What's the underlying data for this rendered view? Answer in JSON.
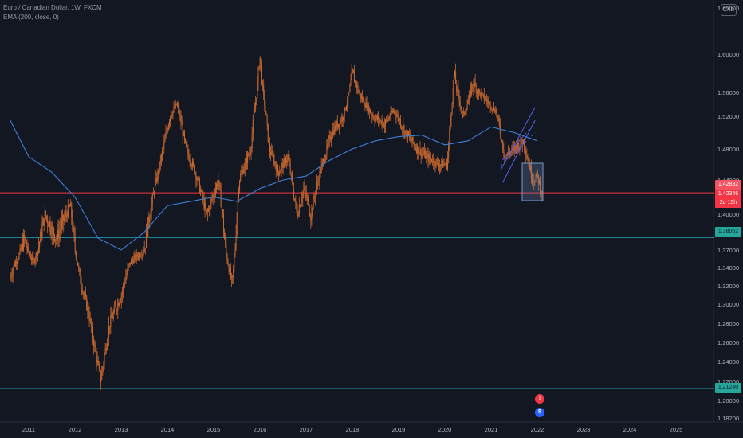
{
  "header": {
    "symbol_title": "Euro / Canadian Dollar, 1W, FXCM",
    "indicator": "EMA (200, close, 0)",
    "currency_button": "CAD"
  },
  "price_tags": {
    "upper": "1.42832",
    "current": "1.42346",
    "countdown": "2d 15h",
    "support_mid": "1.38062",
    "support_low": "1.21240"
  },
  "colors": {
    "background": "#131722",
    "candles": "#c8682f",
    "ema": "#3d7fd6",
    "resistance_line": "#f23645",
    "support_line": "#26c6da",
    "channel": "#5a5ee8"
  },
  "chart_data": {
    "type": "candlestick",
    "title": "Euro / Canadian Dollar, 1W, FXCM",
    "y_ticks": [
      "1.65000",
      "1.60000",
      "1.56000",
      "1.52000",
      "1.48000",
      "1.44000",
      "1.40000",
      "1.37000",
      "1.34000",
      "1.32000",
      "1.30000",
      "1.28000",
      "1.26000",
      "1.24000",
      "1.22000",
      "1.20000",
      "1.18200"
    ],
    "x_ticks": [
      "2011",
      "2012",
      "2013",
      "2014",
      "2015",
      "2016",
      "2017",
      "2018",
      "2019",
      "2020",
      "2021",
      "2022",
      "2023",
      "2024",
      "2025"
    ],
    "price_path": [
      [
        2010.6,
        1.33
      ],
      [
        2010.9,
        1.38
      ],
      [
        2011.1,
        1.35
      ],
      [
        2011.35,
        1.4
      ],
      [
        2011.6,
        1.38
      ],
      [
        2011.9,
        1.41
      ],
      [
        2012.1,
        1.33
      ],
      [
        2012.3,
        1.29
      ],
      [
        2012.55,
        1.22
      ],
      [
        2012.75,
        1.28
      ],
      [
        2013.0,
        1.31
      ],
      [
        2013.2,
        1.35
      ],
      [
        2013.5,
        1.37
      ],
      [
        2013.8,
        1.45
      ],
      [
        2014.05,
        1.52
      ],
      [
        2014.2,
        1.54
      ],
      [
        2014.4,
        1.48
      ],
      [
        2014.6,
        1.45
      ],
      [
        2014.85,
        1.4
      ],
      [
        2015.1,
        1.44
      ],
      [
        2015.3,
        1.35
      ],
      [
        2015.4,
        1.32
      ],
      [
        2015.55,
        1.44
      ],
      [
        2015.8,
        1.48
      ],
      [
        2016.0,
        1.6
      ],
      [
        2016.2,
        1.48
      ],
      [
        2016.4,
        1.45
      ],
      [
        2016.6,
        1.47
      ],
      [
        2016.8,
        1.4
      ],
      [
        2016.95,
        1.43
      ],
      [
        2017.1,
        1.4
      ],
      [
        2017.3,
        1.45
      ],
      [
        2017.55,
        1.5
      ],
      [
        2017.8,
        1.52
      ],
      [
        2018.0,
        1.58
      ],
      [
        2018.2,
        1.55
      ],
      [
        2018.45,
        1.52
      ],
      [
        2018.7,
        1.51
      ],
      [
        2018.9,
        1.53
      ],
      [
        2019.15,
        1.5
      ],
      [
        2019.4,
        1.48
      ],
      [
        2019.6,
        1.47
      ],
      [
        2019.9,
        1.46
      ],
      [
        2020.05,
        1.46
      ],
      [
        2020.2,
        1.58
      ],
      [
        2020.4,
        1.52
      ],
      [
        2020.6,
        1.57
      ],
      [
        2020.85,
        1.55
      ],
      [
        2021.1,
        1.53
      ],
      [
        2021.3,
        1.47
      ],
      [
        2021.5,
        1.48
      ],
      [
        2021.7,
        1.49
      ],
      [
        2021.9,
        1.44
      ],
      [
        2022.0,
        1.445
      ],
      [
        2022.1,
        1.423
      ]
    ],
    "ema_200_path": [
      [
        2010.6,
        1.515
      ],
      [
        2011.0,
        1.47
      ],
      [
        2011.5,
        1.45
      ],
      [
        2012.0,
        1.42
      ],
      [
        2012.5,
        1.38
      ],
      [
        2013.0,
        1.37
      ],
      [
        2013.5,
        1.385
      ],
      [
        2014.0,
        1.41
      ],
      [
        2014.5,
        1.415
      ],
      [
        2015.0,
        1.42
      ],
      [
        2015.5,
        1.415
      ],
      [
        2016.0,
        1.43
      ],
      [
        2016.5,
        1.44
      ],
      [
        2017.0,
        1.445
      ],
      [
        2017.5,
        1.465
      ],
      [
        2018.0,
        1.48
      ],
      [
        2018.5,
        1.49
      ],
      [
        2019.0,
        1.495
      ],
      [
        2019.5,
        1.497
      ],
      [
        2020.0,
        1.485
      ],
      [
        2020.5,
        1.49
      ],
      [
        2021.0,
        1.507
      ],
      [
        2021.5,
        1.5
      ],
      [
        2022.0,
        1.49
      ]
    ],
    "horizontal_levels": [
      {
        "price": 1.425,
        "color": "red"
      },
      {
        "price": 1.38062,
        "color": "teal"
      },
      {
        "price": 1.2124,
        "color": "teal"
      }
    ],
    "ylim": [
      1.182,
      1.65
    ],
    "xlim": [
      2010.6,
      2025.5
    ]
  }
}
